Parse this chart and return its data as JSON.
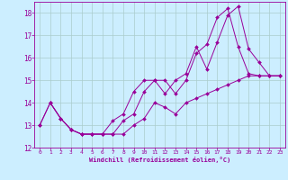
{
  "xlabel": "Windchill (Refroidissement éolien,°C)",
  "bg_color": "#cceeff",
  "grid_color": "#aacccc",
  "line_color": "#990099",
  "xlim": [
    -0.5,
    23.5
  ],
  "ylim": [
    12,
    18.5
  ],
  "xticks": [
    0,
    1,
    2,
    3,
    4,
    5,
    6,
    7,
    8,
    9,
    10,
    11,
    12,
    13,
    14,
    15,
    16,
    17,
    18,
    19,
    20,
    21,
    22,
    23
  ],
  "yticks": [
    12,
    13,
    14,
    15,
    16,
    17,
    18
  ],
  "line_low_x": [
    0,
    1,
    2,
    3,
    4,
    5,
    6,
    7,
    8,
    9,
    10,
    11,
    12,
    13,
    14,
    15,
    16,
    17,
    18,
    19,
    20,
    21,
    22,
    23
  ],
  "line_low_y": [
    13.0,
    14.0,
    13.3,
    12.8,
    12.6,
    12.6,
    12.6,
    12.6,
    12.6,
    13.0,
    13.3,
    14.0,
    13.8,
    13.5,
    14.0,
    14.2,
    14.4,
    14.6,
    14.8,
    15.0,
    15.2,
    15.2,
    15.2,
    15.2
  ],
  "line_mid_x": [
    1,
    2,
    3,
    4,
    5,
    6,
    7,
    8,
    9,
    10,
    11,
    12,
    13,
    14,
    15,
    16,
    17,
    18,
    19,
    20,
    21,
    22,
    23
  ],
  "line_mid_y": [
    14.0,
    13.3,
    12.8,
    12.6,
    12.6,
    12.6,
    12.6,
    13.2,
    13.5,
    14.5,
    15.0,
    15.0,
    14.4,
    15.0,
    16.2,
    16.6,
    17.8,
    18.2,
    16.5,
    15.3,
    15.2,
    15.2,
    15.2
  ],
  "line_top_x": [
    0,
    1,
    2,
    3,
    4,
    5,
    6,
    7,
    8,
    9,
    10,
    11,
    12,
    13,
    14,
    15,
    16,
    17,
    18,
    19,
    20,
    21,
    22,
    23
  ],
  "line_top_y": [
    13.0,
    14.0,
    13.3,
    12.8,
    12.6,
    12.6,
    12.6,
    13.2,
    13.5,
    14.5,
    15.0,
    15.0,
    14.4,
    15.0,
    15.3,
    16.5,
    15.5,
    16.7,
    17.9,
    18.3,
    16.4,
    15.8,
    15.2,
    15.2
  ]
}
